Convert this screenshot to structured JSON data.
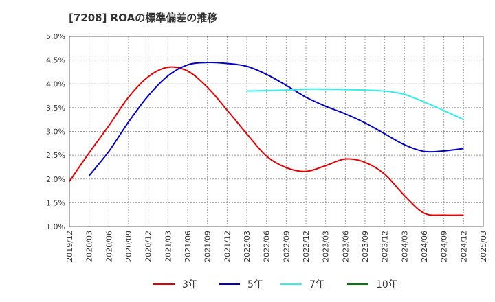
{
  "title": "[7208]  ROAの標準偏差の推移",
  "chart_data": {
    "type": "line",
    "title": "[7208]  ROAの標準偏差の推移",
    "xlabel": "",
    "ylabel": "",
    "x_ticks": [
      "2019/12",
      "2020/03",
      "2020/06",
      "2020/09",
      "2020/12",
      "2021/03",
      "2021/06",
      "2021/09",
      "2021/12",
      "2022/03",
      "2022/06",
      "2022/09",
      "2022/12",
      "2023/03",
      "2023/06",
      "2023/09",
      "2023/12",
      "2024/03",
      "2024/06",
      "2024/09",
      "2024/12",
      "2025/03"
    ],
    "y_ticks": [
      "1.0%",
      "1.5%",
      "2.0%",
      "2.5%",
      "3.0%",
      "3.5%",
      "4.0%",
      "4.5%",
      "5.0%"
    ],
    "ylim": [
      1.0,
      5.0
    ],
    "grid": true,
    "legend_position": "bottom",
    "series": [
      {
        "name": "3年",
        "color": "#e60000",
        "x": [
          "2019/12",
          "2020/03",
          "2020/06",
          "2020/09",
          "2020/12",
          "2021/03",
          "2021/06",
          "2021/09",
          "2021/12",
          "2022/03",
          "2022/06",
          "2022/09",
          "2022/12",
          "2023/03",
          "2023/06",
          "2023/09",
          "2023/12",
          "2024/03",
          "2024/06",
          "2024/09",
          "2024/12"
        ],
        "values": [
          1.95,
          2.55,
          3.12,
          3.72,
          4.15,
          4.35,
          4.27,
          3.93,
          3.45,
          2.95,
          2.48,
          2.24,
          2.16,
          2.28,
          2.42,
          2.35,
          2.1,
          1.65,
          1.28,
          1.24,
          1.24
        ]
      },
      {
        "name": "5年",
        "color": "#0000c8",
        "x": [
          "2020/03",
          "2020/06",
          "2020/09",
          "2020/12",
          "2021/03",
          "2021/06",
          "2021/09",
          "2021/12",
          "2022/03",
          "2022/06",
          "2022/09",
          "2022/12",
          "2023/03",
          "2023/06",
          "2023/09",
          "2023/12",
          "2024/03",
          "2024/06",
          "2024/09",
          "2024/12"
        ],
        "values": [
          2.07,
          2.58,
          3.2,
          3.75,
          4.17,
          4.4,
          4.45,
          4.43,
          4.37,
          4.2,
          3.97,
          3.72,
          3.53,
          3.37,
          3.18,
          2.95,
          2.72,
          2.58,
          2.59,
          2.64
        ]
      },
      {
        "name": "7年",
        "color": "#33eeee",
        "x": [
          "2022/03",
          "2022/06",
          "2022/09",
          "2022/12",
          "2023/03",
          "2023/06",
          "2023/09",
          "2023/12",
          "2024/03",
          "2024/06",
          "2024/09",
          "2024/12"
        ],
        "values": [
          3.85,
          3.86,
          3.87,
          3.89,
          3.89,
          3.88,
          3.87,
          3.85,
          3.78,
          3.62,
          3.44,
          3.25
        ]
      },
      {
        "name": "10年",
        "color": "#008000",
        "x": [],
        "values": []
      }
    ]
  }
}
